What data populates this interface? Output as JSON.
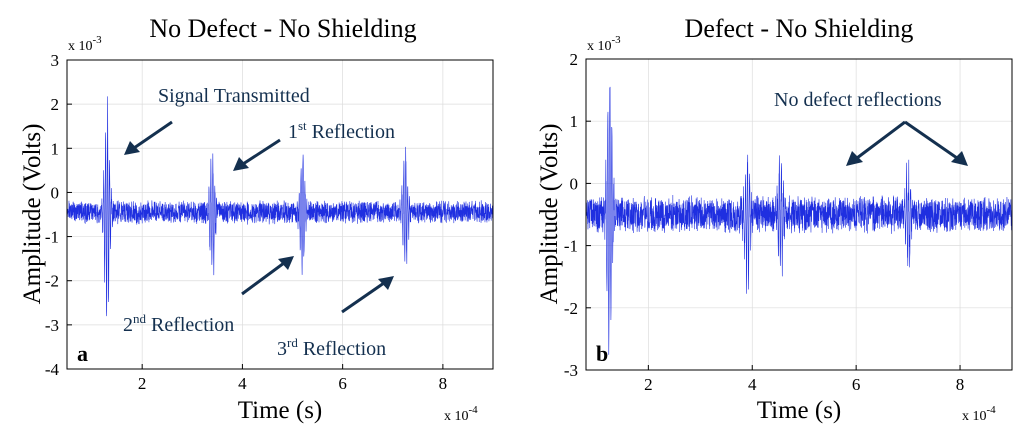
{
  "chart_data": [
    {
      "type": "line",
      "panel_label": "a",
      "title": "No Defect - No Shielding",
      "xlabel": "Time (s)",
      "ylabel": "Amplitude (Volts)",
      "x_multiplier": "x 10",
      "x_exponent": "-4",
      "y_multiplier": "x 10",
      "y_exponent": "-3",
      "xlim": [
        0.5,
        9.0
      ],
      "ylim": [
        -4,
        3
      ],
      "xticks": [
        2,
        4,
        6,
        8
      ],
      "yticks": [
        3,
        2,
        1,
        0,
        -1,
        -2,
        -3,
        -4
      ],
      "grid": true,
      "baseline": -0.45,
      "noise_amplitude": 0.28,
      "bursts": [
        {
          "center": 1.3,
          "max": 2.05,
          "min": -3.3
        },
        {
          "center": 3.4,
          "max": 0.95,
          "min": -2.05
        },
        {
          "center": 5.2,
          "max": 1.0,
          "min": -1.9
        },
        {
          "center": 7.25,
          "max": 1.15,
          "min": -1.9
        }
      ],
      "annotations": [
        {
          "text": "Signal Transmitted"
        },
        {
          "base": "1",
          "sup": "st",
          "rest": " Reflection"
        },
        {
          "base": "2",
          "sup": "nd",
          "rest": " Reflection"
        },
        {
          "base": "3",
          "sup": "rd",
          "rest": " Reflection"
        }
      ]
    },
    {
      "type": "line",
      "panel_label": "b",
      "title": "Defect - No Shielding",
      "xlabel": "Time (s)",
      "ylabel": "Amplitude (Volts)",
      "x_multiplier": "x 10",
      "x_exponent": "-4",
      "y_multiplier": "x 10",
      "y_exponent": "-3",
      "xlim": [
        0.8,
        9.0
      ],
      "ylim": [
        -3,
        2
      ],
      "xticks": [
        2,
        4,
        6,
        8
      ],
      "yticks": [
        2,
        1,
        0,
        -1,
        -2,
        -3
      ],
      "grid": true,
      "baseline": -0.5,
      "noise_amplitude": 0.32,
      "bursts": [
        {
          "center": 1.25,
          "max": 2.0,
          "min": -2.85
        },
        {
          "center": 3.9,
          "max": 0.55,
          "min": -1.7
        },
        {
          "center": 4.55,
          "max": 0.55,
          "min": -1.6
        },
        {
          "center": 7.0,
          "max": 0.3,
          "min": -1.35
        }
      ],
      "annotations": [
        {
          "text": "No defect reflections"
        }
      ]
    }
  ]
}
